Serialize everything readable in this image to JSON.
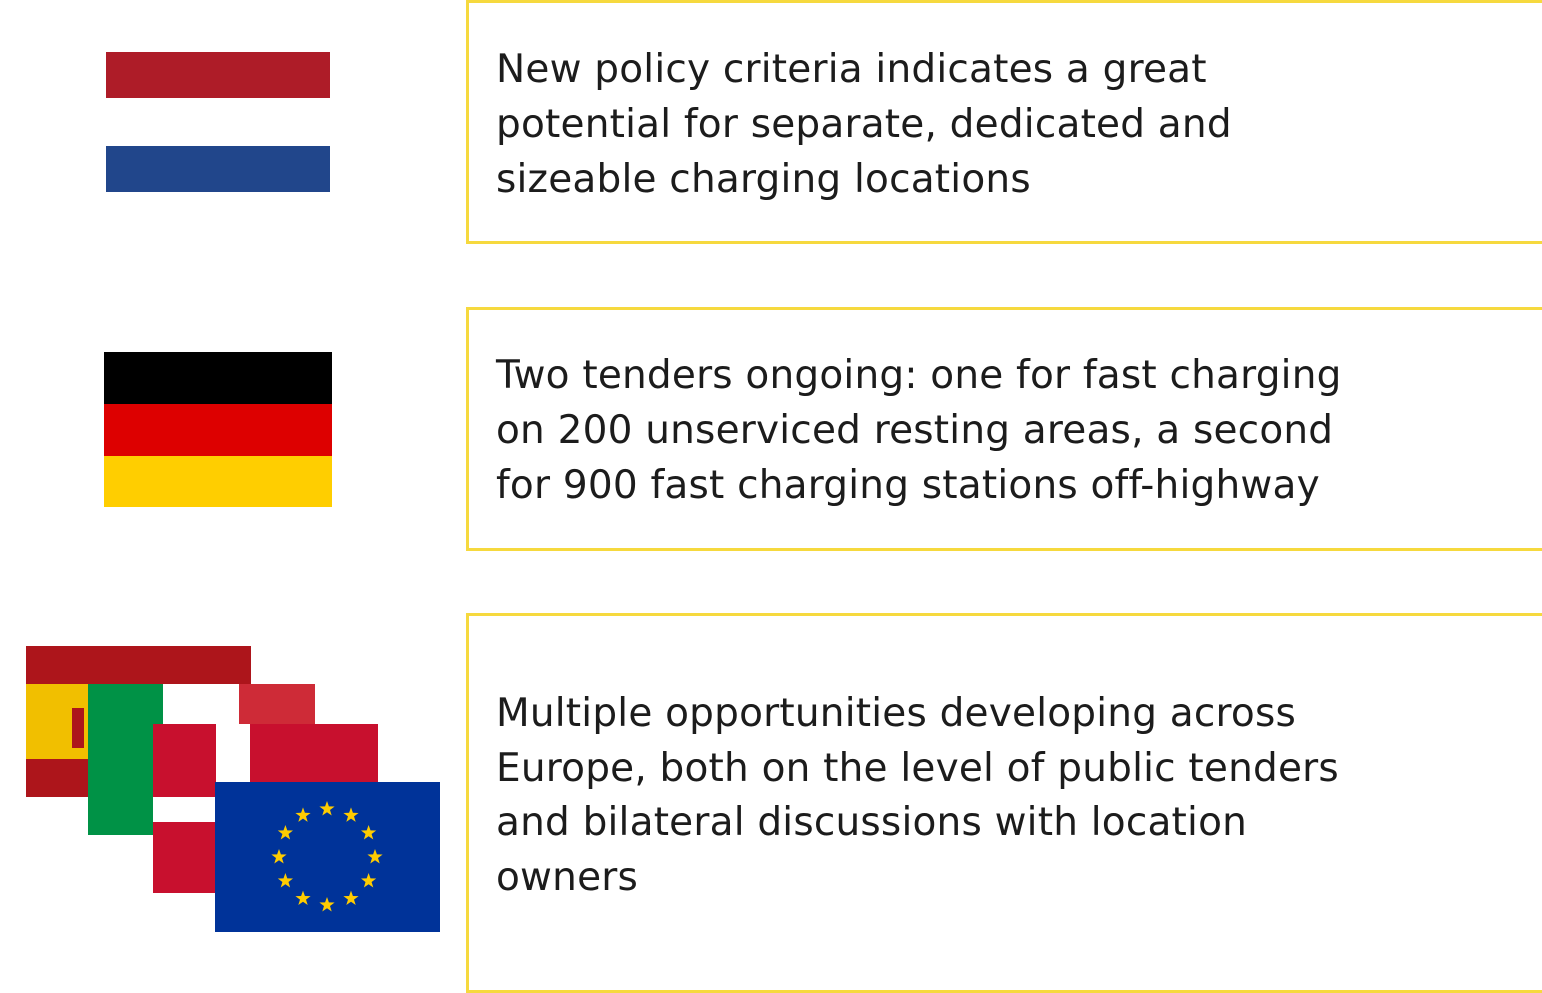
{
  "items": [
    {
      "lines": [
        "New policy criteria indicates a great",
        "potential for separate, dedicated and",
        "sizeable charging locations"
      ]
    },
    {
      "lines": [
        "Two tenders ongoing: one for fast charging",
        "on 200 unserviced resting areas, a second",
        "for 900 fast charging stations off-highway"
      ]
    },
    {
      "lines": [
        "Multiple opportunities developing across",
        "Europe, both on the level of public tenders",
        "and bilateral discussions with location",
        "owners"
      ]
    }
  ]
}
